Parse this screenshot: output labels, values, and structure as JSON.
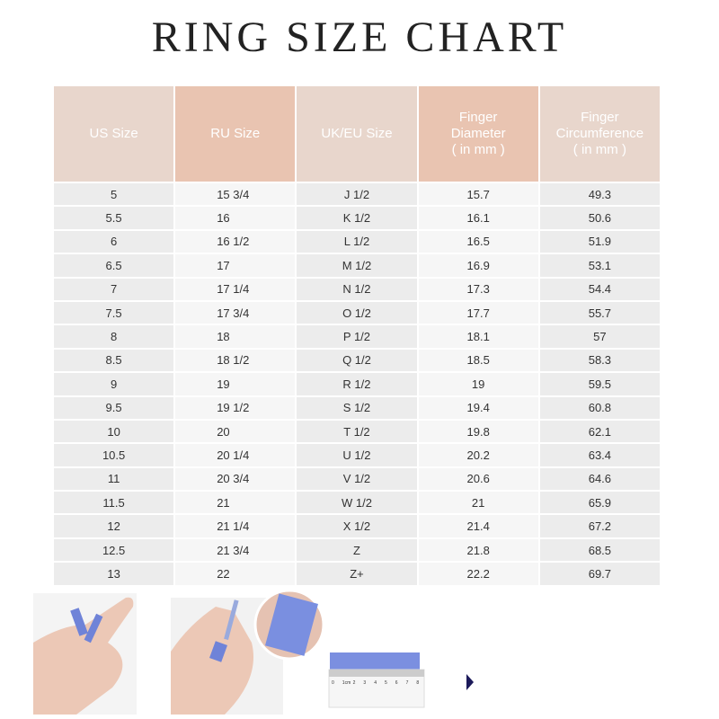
{
  "title": "RING SIZE CHART",
  "headers": [
    "US Size",
    "RU Size",
    "UK/EU Size",
    "Finger\nDiameter\n( in mm )",
    "Finger\nCircumference\n( in mm )"
  ],
  "rows": [
    [
      "5",
      "15  3/4",
      "J  1/2",
      "15.7",
      "49.3"
    ],
    [
      "5.5",
      "16",
      "K  1/2",
      "16.1",
      "50.6"
    ],
    [
      "6",
      "16  1/2",
      "L  1/2",
      "16.5",
      "51.9"
    ],
    [
      "6.5",
      "17",
      "M 1/2",
      "16.9",
      "53.1"
    ],
    [
      "7",
      "17  1/4",
      "N  1/2",
      "17.3",
      "54.4"
    ],
    [
      "7.5",
      "17  3/4",
      "O  1/2",
      "17.7",
      "55.7"
    ],
    [
      "8",
      "18",
      "P  1/2",
      "18.1",
      "57"
    ],
    [
      "8.5",
      "18  1/2",
      "Q  1/2",
      "18.5",
      "58.3"
    ],
    [
      "9",
      "19",
      "R  1/2",
      "19",
      "59.5"
    ],
    [
      "9.5",
      "19  1/2",
      "S  1/2",
      "19.4",
      "60.8"
    ],
    [
      "10",
      "20",
      "T  1/2",
      "19.8",
      "62.1"
    ],
    [
      "10.5",
      "20  1/4",
      "U  1/2",
      "20.2",
      "63.4"
    ],
    [
      "11",
      "20  3/4",
      "V  1/2",
      "20.6",
      "64.6"
    ],
    [
      "11.5",
      "21",
      "W  1/2",
      "21",
      "65.9"
    ],
    [
      "12",
      "21  1/4",
      "X  1/2",
      "21.4",
      "67.2"
    ],
    [
      "12.5",
      "21  3/4",
      "Z",
      "21.8",
      "68.5"
    ],
    [
      "13",
      "22",
      "Z+",
      "22.2",
      "69.7"
    ]
  ],
  "ruler_labels": [
    "0",
    "1cm",
    "2",
    "3",
    "4",
    "5",
    "6",
    "7",
    "8"
  ],
  "colors": {
    "header_light": "#e8d6cc",
    "header_dark": "#e9c4b1",
    "tape": "#7b8fe0",
    "arrow": "#1c1a5a"
  }
}
